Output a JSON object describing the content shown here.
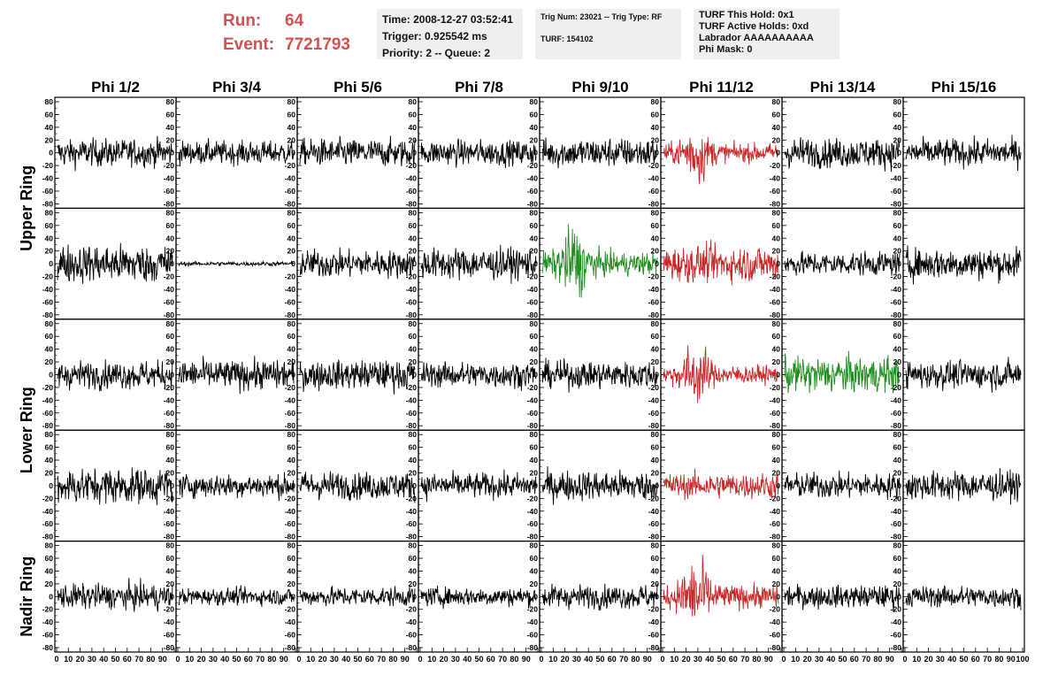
{
  "header": {
    "run_label": "Run:",
    "run_value": "64",
    "event_label": "Event:",
    "event_value": "7721793"
  },
  "info_panels": {
    "time": "Time: 2008-12-27 03:52:41",
    "trigger": "Trigger: 0.925542 ms",
    "priority": "Priority: 2 -- Queue: 2",
    "trig_num": "Trig Num: 23021 -- Trig Type: RF",
    "turf": "TURF: 154102",
    "turf_this_hold": "TURF This Hold: 0x1",
    "turf_active_holds": "TURF Active Holds: 0xd",
    "labrador": "Labrador AAAAAAAAAA",
    "phi_mask": "Phi Mask: 0"
  },
  "columns": [
    "Phi 1/2",
    "Phi 3/4",
    "Phi 5/6",
    "Phi 7/8",
    "Phi 9/10",
    "Phi 11/12",
    "Phi 13/14",
    "Phi 15/16"
  ],
  "ring_labels": [
    {
      "label": "Upper Ring",
      "rows": [
        0,
        1
      ]
    },
    {
      "label": "Lower Ring",
      "rows": [
        2,
        3
      ]
    },
    {
      "label": "Nadir Ring",
      "rows": [
        4,
        4
      ]
    }
  ],
  "colors": {
    "normal": "#000000",
    "triggered": "#c62828",
    "highlight": "#1e8c1e",
    "title_red": "#d05252"
  },
  "chart_data": {
    "type": "line",
    "grid": false,
    "ylim": [
      -80,
      80
    ],
    "xlim": [
      0,
      100
    ],
    "y_ticks": [
      -80,
      -60,
      -40,
      -20,
      0,
      20,
      40,
      60,
      80
    ],
    "x_ticks": [
      0,
      10,
      20,
      30,
      40,
      50,
      60,
      70,
      80,
      90,
      100
    ],
    "x_tick_labels": [
      "0",
      "10",
      "20",
      "30",
      "40",
      "50",
      "60",
      "70",
      "80",
      "90",
      "100"
    ],
    "panels": [
      [
        {
          "amp": 13,
          "color": "normal"
        },
        {
          "amp": 11,
          "color": "normal"
        },
        {
          "amp": 13,
          "color": "normal"
        },
        {
          "amp": 12,
          "color": "normal"
        },
        {
          "amp": 14,
          "color": "normal"
        },
        {
          "amp": 16,
          "color": "triggered",
          "burst": true
        },
        {
          "amp": 14,
          "color": "normal"
        },
        {
          "amp": 13,
          "color": "normal"
        }
      ],
      [
        {
          "amp": 18,
          "color": "normal"
        },
        {
          "amp": 2,
          "color": "normal"
        },
        {
          "amp": 13,
          "color": "normal"
        },
        {
          "amp": 15,
          "color": "normal"
        },
        {
          "amp": 20,
          "color": "highlight",
          "burst": true
        },
        {
          "amp": 17,
          "color": "triggered"
        },
        {
          "amp": 11,
          "color": "normal"
        },
        {
          "amp": 15,
          "color": "normal"
        }
      ],
      [
        {
          "amp": 13,
          "color": "normal"
        },
        {
          "amp": 14,
          "color": "normal"
        },
        {
          "amp": 14,
          "color": "normal"
        },
        {
          "amp": 12,
          "color": "normal"
        },
        {
          "amp": 13,
          "color": "normal"
        },
        {
          "amp": 16,
          "color": "triggered",
          "burst": true
        },
        {
          "amp": 17,
          "color": "highlight"
        },
        {
          "amp": 13,
          "color": "normal"
        }
      ],
      [
        {
          "amp": 17,
          "color": "normal"
        },
        {
          "amp": 11,
          "color": "normal"
        },
        {
          "amp": 13,
          "color": "normal"
        },
        {
          "amp": 12,
          "color": "normal"
        },
        {
          "amp": 14,
          "color": "normal"
        },
        {
          "amp": 12,
          "color": "triggered"
        },
        {
          "amp": 12,
          "color": "normal"
        },
        {
          "amp": 14,
          "color": "normal"
        }
      ],
      [
        {
          "amp": 12,
          "color": "normal"
        },
        {
          "amp": 8,
          "color": "normal"
        },
        {
          "amp": 9,
          "color": "normal"
        },
        {
          "amp": 9,
          "color": "normal"
        },
        {
          "amp": 11,
          "color": "normal"
        },
        {
          "amp": 20,
          "color": "triggered",
          "burst": true
        },
        {
          "amp": 11,
          "color": "normal"
        },
        {
          "amp": 10,
          "color": "normal"
        }
      ]
    ]
  }
}
